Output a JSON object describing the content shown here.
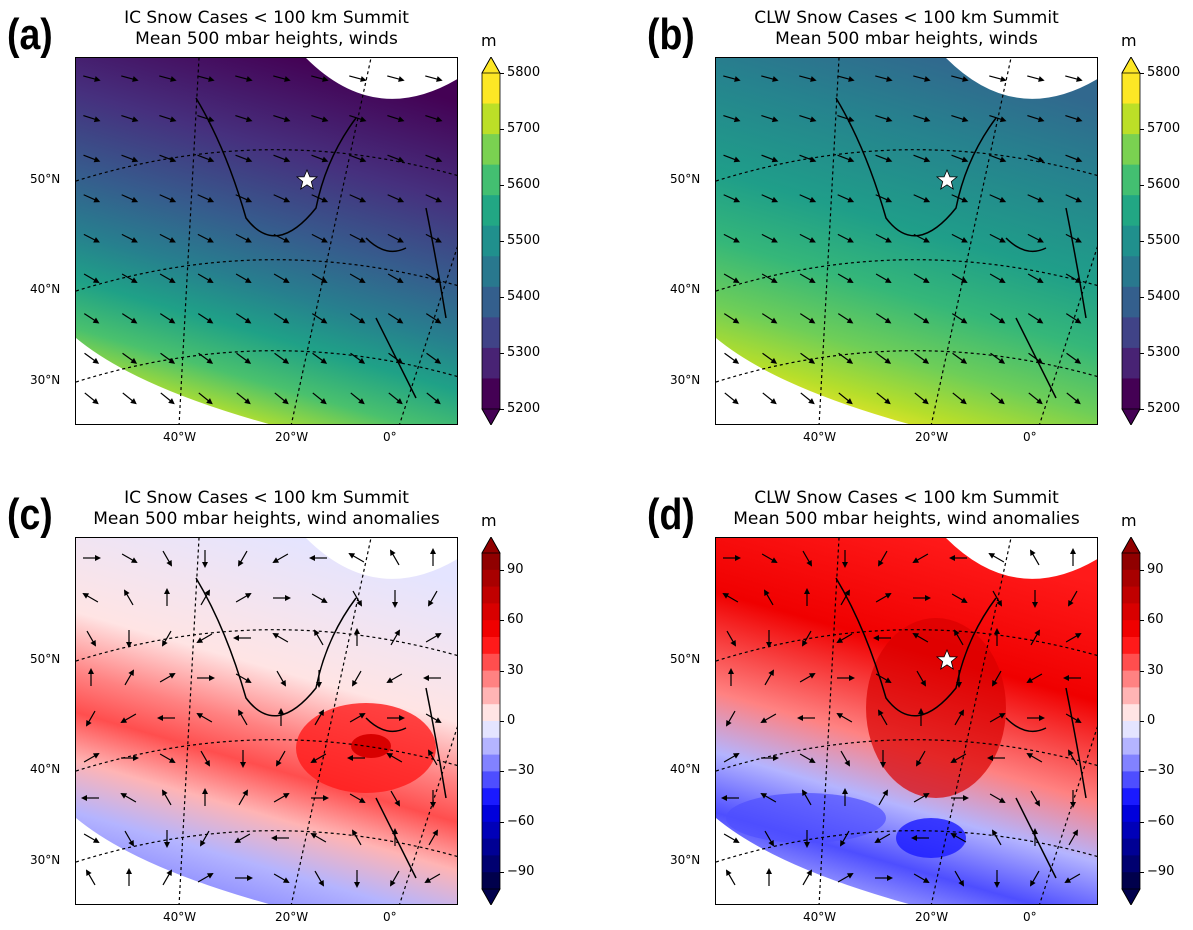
{
  "panels": [
    {
      "label": "(a)",
      "title1": "IC Snow Cases < 100 km Summit",
      "title2": "Mean 500 mbar heights, winds",
      "kind": "heights",
      "star": true
    },
    {
      "label": "(b)",
      "title1": "CLW Snow Cases < 100 km Summit",
      "title2": "Mean 500 mbar heights, winds",
      "kind": "heights2",
      "star": true
    },
    {
      "label": "(c)",
      "title1": "IC Snow Cases < 100 km Summit",
      "title2": "Mean 500 mbar heights, wind anomalies",
      "kind": "anomC",
      "star": false
    },
    {
      "label": "(d)",
      "title1": "CLW Snow Cases < 100 km Summit",
      "title2": "Mean 500 mbar heights, wind anomalies",
      "kind": "anomD",
      "star": true
    }
  ],
  "lat_labels": [
    "50°N",
    "40°N",
    "30°N"
  ],
  "lon_labels": [
    "40°W",
    "20°W",
    "0°"
  ],
  "colorbar_heights": {
    "unit": "m",
    "ticks": [
      "5800",
      "5700",
      "5600",
      "5500",
      "5400",
      "5300",
      "5200"
    ],
    "range": [
      5200,
      5800
    ],
    "step": 50,
    "colors": [
      "#440154",
      "#482374",
      "#404387",
      "#345f8d",
      "#29788e",
      "#20908d",
      "#22a784",
      "#43bf71",
      "#7ad151",
      "#bcdf27",
      "#fde725"
    ]
  },
  "colorbar_anom": {
    "unit": "m",
    "ticks": [
      "90",
      "60",
      "30",
      "0",
      "−30",
      "−60",
      "−90"
    ],
    "range": [
      -100,
      100
    ],
    "step": 10,
    "colors": [
      "#00004c",
      "#000070",
      "#000094",
      "#0000b8",
      "#0000dc",
      "#1a1aff",
      "#4e4eff",
      "#8282ff",
      "#b4b4ff",
      "#e4e4ff",
      "#ffe4e4",
      "#ffb4b4",
      "#ff8282",
      "#ff4e4e",
      "#ff1a1a",
      "#f00000",
      "#d80000",
      "#c00000",
      "#a80000",
      "#900000"
    ]
  }
}
